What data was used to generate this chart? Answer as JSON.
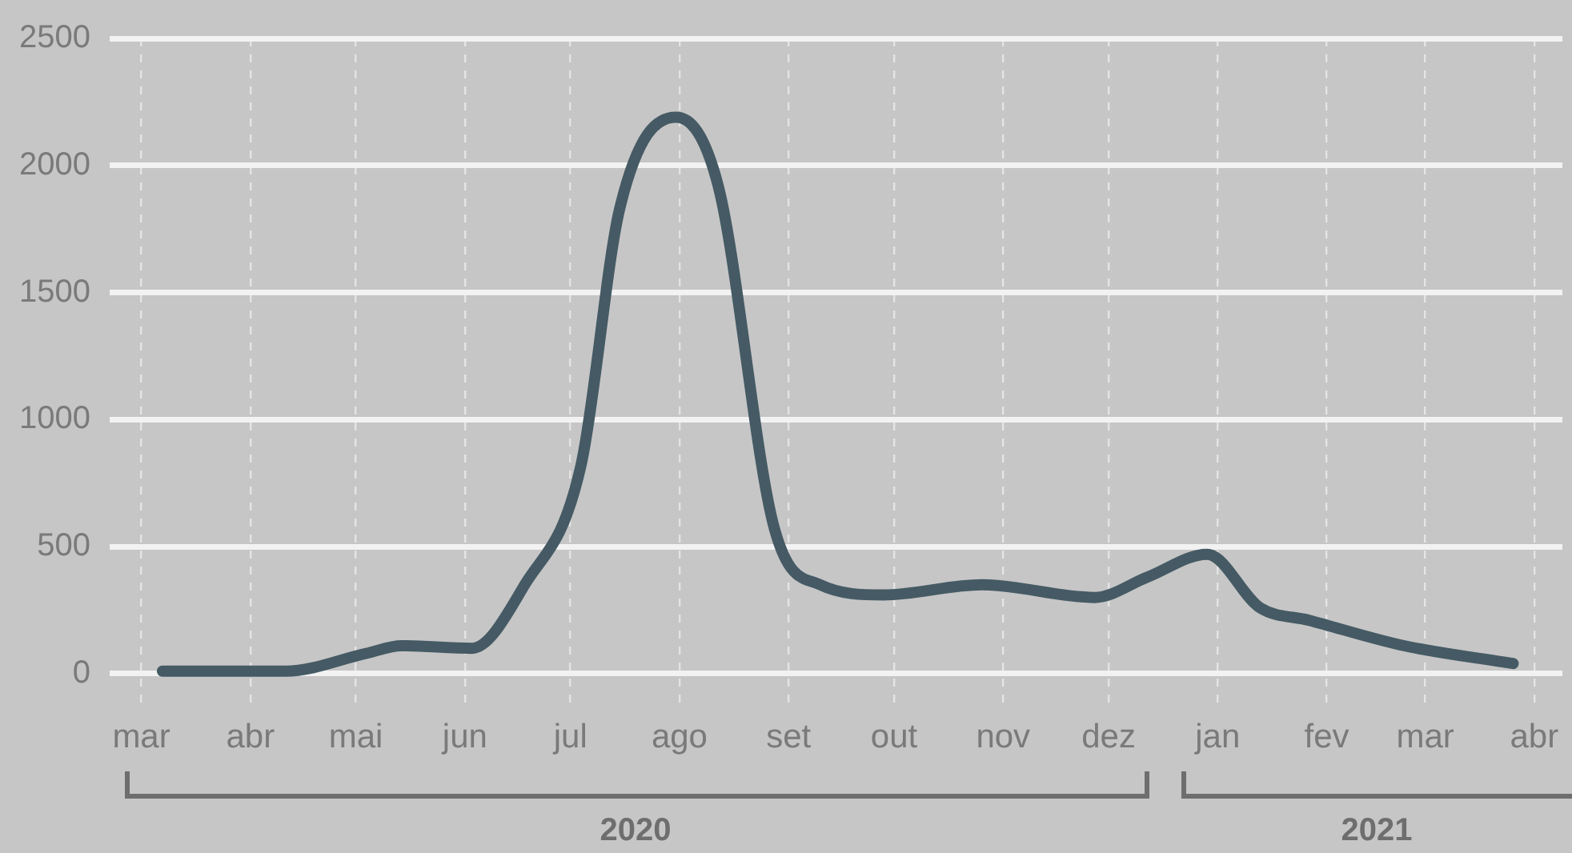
{
  "chart_data": {
    "type": "line",
    "x": [
      "2020-03-07",
      "2020-04-11",
      "2020-05-04",
      "2020-05-14",
      "2020-06-03",
      "2020-06-18",
      "2020-07-04",
      "2020-07-15",
      "2020-07-31",
      "2020-08-12",
      "2020-08-28",
      "2020-09-10",
      "2020-09-28",
      "2020-10-26",
      "2020-11-27",
      "2020-12-12",
      "2020-12-29",
      "2021-01-13",
      "2021-01-27",
      "2021-02-23",
      "2021-03-26"
    ],
    "series": [
      {
        "color": "#455a64",
        "values": [
          10,
          10,
          80,
          110,
          100,
          350,
          820,
          1830,
          2190,
          1920,
          570,
          350,
          310,
          350,
          300,
          380,
          470,
          260,
          210,
          110,
          40
        ]
      }
    ],
    "xlim": [
      "2020-02-21",
      "2021-04-09"
    ],
    "xticks": [
      {
        "value": "2020-03-01",
        "label": "mar"
      },
      {
        "value": "2020-04-01",
        "label": "abr"
      },
      {
        "value": "2020-05-01",
        "label": "mai"
      },
      {
        "value": "2020-06-01",
        "label": "jun"
      },
      {
        "value": "2020-07-01",
        "label": "jul"
      },
      {
        "value": "2020-08-01",
        "label": "ago"
      },
      {
        "value": "2020-09-01",
        "label": "set"
      },
      {
        "value": "2020-10-01",
        "label": "out"
      },
      {
        "value": "2020-11-01",
        "label": "nov"
      },
      {
        "value": "2020-12-01",
        "label": "dez"
      },
      {
        "value": "2021-01-01",
        "label": "jan"
      },
      {
        "value": "2021-02-01",
        "label": "fev"
      },
      {
        "value": "2021-03-01",
        "label": "mar"
      },
      {
        "value": "2021-04-01",
        "label": "abr"
      }
    ],
    "ylim": [
      -125,
      2500
    ],
    "yticks": [
      0,
      500,
      1000,
      1500,
      2000,
      2500
    ],
    "grid": true,
    "marker": "none",
    "line_style": "solid",
    "annotations": [
      "2020",
      "2021"
    ]
  }
}
